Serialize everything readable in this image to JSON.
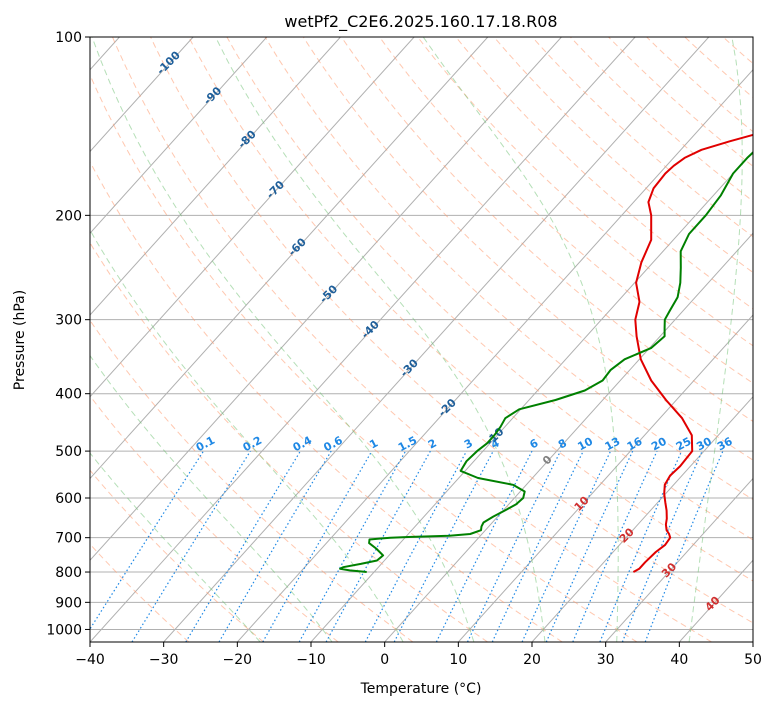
{
  "chart_data": {
    "type": "line",
    "title": "wetPf2_C2E6.2025.160.17.18.R08",
    "xlabel": "Temperature (°C)",
    "ylabel": "Pressure (hPa)",
    "xlim": [
      -40,
      50
    ],
    "ylim": [
      1050,
      100
    ],
    "y_scale": "log",
    "grid": true,
    "x_ticks": [
      -40,
      -30,
      -20,
      -10,
      0,
      10,
      20,
      30,
      40,
      50
    ],
    "y_ticks": [
      100,
      200,
      300,
      400,
      500,
      600,
      700,
      800,
      900,
      1000
    ],
    "series": [
      {
        "color": "#e00000",
        "pressure": [
          800,
          790,
          770,
          740,
          720,
          700,
          690,
          680,
          665,
          650,
          630,
          610,
          590,
          570,
          550,
          530,
          500,
          470,
          440,
          410,
          380,
          350,
          320,
          300,
          280,
          260,
          240,
          220,
          200,
          190,
          180,
          170,
          165,
          160,
          155,
          150,
          145,
          140,
          135,
          130,
          125,
          120,
          115,
          110,
          105,
          100
        ],
        "temperature": [
          25.2,
          25.6,
          25.6,
          25.8,
          26.2,
          26.0,
          25.4,
          24.6,
          23.8,
          23.2,
          22.2,
          21.0,
          19.8,
          18.8,
          18.4,
          18.6,
          18.4,
          16.4,
          13.0,
          8.6,
          4.2,
          0.2,
          -3.2,
          -5.4,
          -7.0,
          -9.8,
          -11.6,
          -13.0,
          -16.0,
          -18.0,
          -19.0,
          -19.2,
          -19.0,
          -18.5,
          -17.2,
          -14.4,
          -11.2,
          -7.6,
          -4.4,
          -1.6,
          0.4,
          1.4,
          2.6,
          4.2,
          6.4,
          8.6
        ]
      },
      {
        "color": "#008000",
        "pressure": [
          800,
          795,
          790,
          785,
          775,
          765,
          750,
          730,
          715,
          705,
          700,
          698,
          695,
          690,
          680,
          670,
          660,
          645,
          630,
          615,
          600,
          585,
          570,
          555,
          540,
          520,
          500,
          485,
          470,
          455,
          440,
          425,
          410,
          395,
          380,
          365,
          350,
          335,
          320,
          310,
          300,
          290,
          275,
          260,
          245,
          230,
          215,
          200,
          185,
          170,
          160,
          150,
          140,
          130,
          120,
          115,
          110,
          105,
          100
        ],
        "temperature": [
          -11.0,
          -13.5,
          -15.0,
          -14.8,
          -12.8,
          -11.0,
          -10.8,
          -12.6,
          -14.2,
          -14.6,
          -12.0,
          -9.2,
          -4.2,
          -1.6,
          -0.6,
          -1.0,
          -1.2,
          -0.6,
          0.2,
          1.0,
          1.2,
          0.6,
          -1.8,
          -7.4,
          -10.6,
          -11.0,
          -10.8,
          -10.4,
          -10.4,
          -10.6,
          -11.0,
          -10.2,
          -6.4,
          -3.6,
          -2.4,
          -2.6,
          -2.0,
          0.2,
          0.6,
          -0.4,
          -1.4,
          -1.8,
          -2.4,
          -3.8,
          -5.6,
          -7.6,
          -8.6,
          -8.6,
          -9.0,
          -10.0,
          -10.0,
          -9.6,
          -10.2,
          -10.2,
          -9.6,
          -8.6,
          -7.6,
          -6.2,
          -4.0
        ]
      }
    ],
    "isotherm_labels": [
      "-100",
      "-90",
      "-80",
      "-70",
      "-60",
      "-50",
      "-40",
      "-30",
      "-20",
      "-10",
      "0",
      "10",
      "20",
      "30",
      "40"
    ],
    "mixing_ratio_labels": [
      "0.1",
      "0.2",
      "0.4",
      "0.6",
      "1",
      "1.5",
      "2",
      "3",
      "4",
      "6",
      "8",
      "10",
      "13",
      "16",
      "20",
      "25",
      "30",
      "36"
    ],
    "isotherm_values": [
      -100,
      -90,
      -80,
      -70,
      -60,
      -50,
      -40,
      -30,
      -20,
      -10,
      0,
      10,
      20,
      30,
      40
    ],
    "mixing_ratio_values": [
      0.1,
      0.2,
      0.4,
      0.6,
      1,
      1.5,
      2,
      3,
      4,
      6,
      8,
      10,
      13,
      16,
      20,
      25,
      30,
      36
    ],
    "colors": {
      "isotherm_cold": "#1f5f9a",
      "isotherm_zero": "#808080",
      "isotherm_warm": "#d03030",
      "mixing_ratio": "#1e88e5",
      "dry_adiabat": "#ff9a70",
      "moist_adiabat": "#6cc070",
      "grid": "#b0b0b0"
    }
  }
}
